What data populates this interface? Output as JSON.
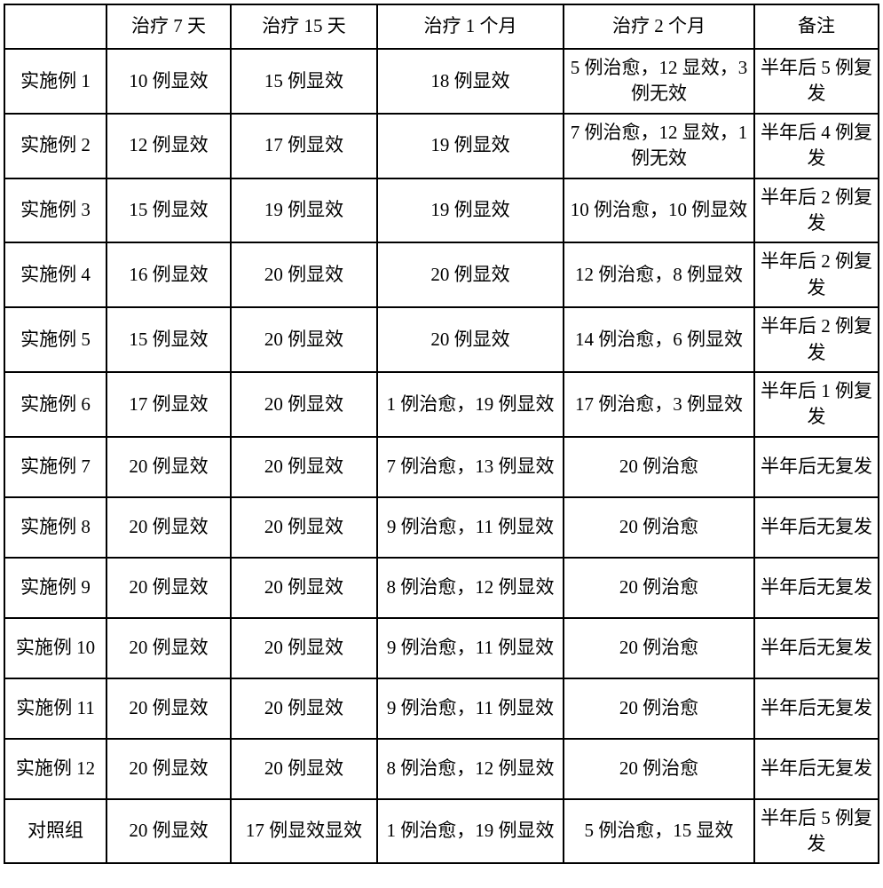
{
  "columns": [
    "",
    "治疗 7 天",
    "治疗 15 天",
    "治疗 1 个月",
    "治疗 2 个月",
    "备注"
  ],
  "rows": [
    [
      "实施例 1",
      "10 例显效",
      "15 例显效",
      "18 例显效",
      "5 例治愈，12 显效，3 例无效",
      "半年后 5 例复发"
    ],
    [
      "实施例 2",
      "12 例显效",
      "17 例显效",
      "19 例显效",
      "7 例治愈，12 显效，1 例无效",
      "半年后 4 例复发"
    ],
    [
      "实施例 3",
      "15 例显效",
      "19 例显效",
      "19 例显效",
      "10 例治愈，10 例显效",
      "半年后 2 例复发"
    ],
    [
      "实施例 4",
      "16 例显效",
      "20 例显效",
      "20 例显效",
      "12 例治愈，8 例显效",
      "半年后 2 例复发"
    ],
    [
      "实施例 5",
      "15 例显效",
      "20 例显效",
      "20 例显效",
      "14 例治愈，6 例显效",
      "半年后 2 例复发"
    ],
    [
      "实施例 6",
      "17 例显效",
      "20 例显效",
      "1 例治愈，19 例显效",
      "17 例治愈，3 例显效",
      "半年后 1 例复发"
    ],
    [
      "实施例 7",
      "20 例显效",
      "20 例显效",
      "7 例治愈，13 例显效",
      "20 例治愈",
      "半年后无复发"
    ],
    [
      "实施例 8",
      "20 例显效",
      "20 例显效",
      "9 例治愈，11 例显效",
      "20 例治愈",
      "半年后无复发"
    ],
    [
      "实施例 9",
      "20 例显效",
      "20 例显效",
      "8 例治愈，12 例显效",
      "20 例治愈",
      "半年后无复发"
    ],
    [
      "实施例 10",
      "20 例显效",
      "20 例显效",
      "9 例治愈，11 例显效",
      "20 例治愈",
      "半年后无复发"
    ],
    [
      "实施例 11",
      "20 例显效",
      "20 例显效",
      "9 例治愈，11 例显效",
      "20 例治愈",
      "半年后无复发"
    ],
    [
      "实施例 12",
      "20 例显效",
      "20 例显效",
      "8 例治愈，12 例显效",
      "20 例治愈",
      "半年后无复发"
    ],
    [
      "对照组",
      "20 例显效",
      "17 例显效显效",
      "1 例治愈，19 例显效",
      "5 例治愈，15 显效",
      "半年后 5 例复发"
    ]
  ]
}
